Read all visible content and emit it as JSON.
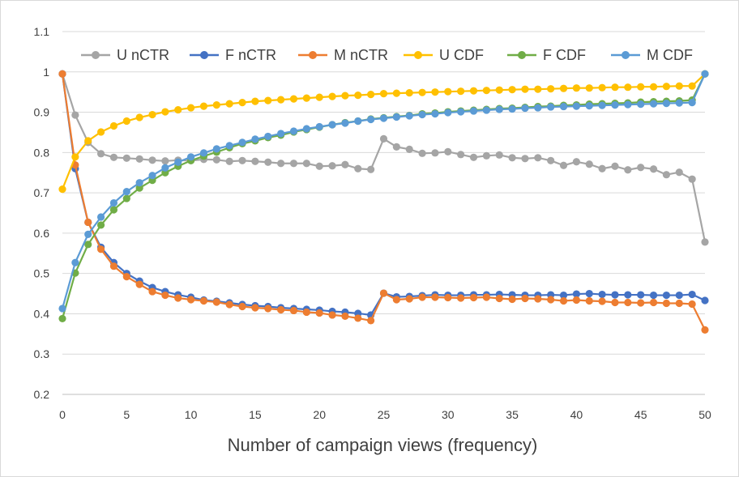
{
  "chart_data": {
    "type": "line",
    "title": "",
    "xlabel": "Number of campaign views (frequency)",
    "ylabel": "",
    "xlim": [
      0,
      50
    ],
    "ylim": [
      0.2,
      1.1
    ],
    "x_ticks": [
      0,
      5,
      10,
      15,
      20,
      25,
      30,
      35,
      40,
      45,
      50
    ],
    "y_ticks": [
      0.2,
      0.3,
      0.4,
      0.5,
      0.6,
      0.7,
      0.8,
      0.9,
      1,
      1.1
    ],
    "y_tick_labels": [
      "0.2",
      "0.3",
      "0.4",
      "0.5",
      "0.6",
      "0.7",
      "0.8",
      "0.9",
      "1",
      "1.1"
    ],
    "x_tick_labels": [
      "0",
      "5",
      "10",
      "15",
      "20",
      "25",
      "30",
      "35",
      "40",
      "45",
      "50"
    ],
    "grid": "horizontal",
    "legend_position": "top",
    "x": [
      0,
      1,
      2,
      3,
      4,
      5,
      6,
      7,
      8,
      9,
      10,
      11,
      12,
      13,
      14,
      15,
      16,
      17,
      18,
      19,
      20,
      21,
      22,
      23,
      24,
      25,
      26,
      27,
      28,
      29,
      30,
      31,
      32,
      33,
      34,
      35,
      36,
      37,
      38,
      39,
      40,
      41,
      42,
      43,
      44,
      45,
      46,
      47,
      48,
      49,
      50
    ],
    "series": [
      {
        "name": "U nCTR",
        "color": "#a5a5a5",
        "values": [
          0.995,
          0.893,
          0.825,
          0.797,
          0.788,
          0.786,
          0.784,
          0.781,
          0.779,
          0.781,
          0.78,
          0.783,
          0.782,
          0.778,
          0.78,
          0.778,
          0.776,
          0.773,
          0.773,
          0.773,
          0.766,
          0.767,
          0.77,
          0.76,
          0.758,
          0.834,
          0.814,
          0.808,
          0.798,
          0.799,
          0.802,
          0.795,
          0.788,
          0.792,
          0.794,
          0.787,
          0.785,
          0.787,
          0.78,
          0.768,
          0.777,
          0.771,
          0.76,
          0.766,
          0.757,
          0.763,
          0.759,
          0.745,
          0.751,
          0.734,
          0.578
        ]
      },
      {
        "name": "F nCTR",
        "color": "#4472c4",
        "values": [
          0.995,
          0.76,
          0.627,
          0.565,
          0.527,
          0.5,
          0.481,
          0.465,
          0.455,
          0.447,
          0.441,
          0.434,
          0.431,
          0.427,
          0.423,
          0.42,
          0.418,
          0.415,
          0.413,
          0.411,
          0.409,
          0.406,
          0.404,
          0.401,
          0.397,
          0.451,
          0.442,
          0.443,
          0.445,
          0.447,
          0.446,
          0.446,
          0.447,
          0.447,
          0.448,
          0.447,
          0.446,
          0.446,
          0.447,
          0.446,
          0.449,
          0.45,
          0.448,
          0.447,
          0.447,
          0.447,
          0.446,
          0.446,
          0.446,
          0.448,
          0.433
        ]
      },
      {
        "name": "M nCTR",
        "color": "#ed7d31",
        "values": [
          0.995,
          0.769,
          0.627,
          0.56,
          0.518,
          0.492,
          0.473,
          0.455,
          0.446,
          0.439,
          0.435,
          0.432,
          0.429,
          0.423,
          0.418,
          0.415,
          0.413,
          0.41,
          0.408,
          0.404,
          0.402,
          0.397,
          0.394,
          0.389,
          0.383,
          0.451,
          0.435,
          0.437,
          0.441,
          0.441,
          0.44,
          0.439,
          0.44,
          0.441,
          0.438,
          0.436,
          0.438,
          0.437,
          0.435,
          0.432,
          0.434,
          0.432,
          0.431,
          0.428,
          0.428,
          0.427,
          0.428,
          0.426,
          0.426,
          0.424,
          0.36
        ]
      },
      {
        "name": "U CDF",
        "color": "#ffc000",
        "values": [
          0.709,
          0.789,
          0.829,
          0.851,
          0.866,
          0.878,
          0.887,
          0.894,
          0.901,
          0.906,
          0.911,
          0.915,
          0.918,
          0.921,
          0.924,
          0.927,
          0.929,
          0.931,
          0.933,
          0.935,
          0.937,
          0.939,
          0.941,
          0.942,
          0.944,
          0.946,
          0.947,
          0.948,
          0.949,
          0.95,
          0.951,
          0.952,
          0.953,
          0.954,
          0.955,
          0.956,
          0.957,
          0.957,
          0.958,
          0.959,
          0.96,
          0.96,
          0.961,
          0.962,
          0.962,
          0.963,
          0.963,
          0.964,
          0.965,
          0.965,
          0.995
        ]
      },
      {
        "name": "F CDF",
        "color": "#70ad47",
        "values": [
          0.388,
          0.501,
          0.572,
          0.62,
          0.658,
          0.686,
          0.712,
          0.731,
          0.75,
          0.766,
          0.78,
          0.791,
          0.801,
          0.812,
          0.822,
          0.829,
          0.837,
          0.843,
          0.851,
          0.857,
          0.863,
          0.869,
          0.874,
          0.878,
          0.883,
          0.886,
          0.889,
          0.892,
          0.896,
          0.898,
          0.901,
          0.903,
          0.905,
          0.907,
          0.909,
          0.91,
          0.912,
          0.914,
          0.915,
          0.917,
          0.918,
          0.92,
          0.921,
          0.922,
          0.923,
          0.925,
          0.926,
          0.927,
          0.928,
          0.93,
          0.995
        ]
      },
      {
        "name": "M CDF",
        "color": "#5b9bd5",
        "values": [
          0.413,
          0.527,
          0.597,
          0.64,
          0.675,
          0.703,
          0.725,
          0.743,
          0.762,
          0.776,
          0.789,
          0.799,
          0.809,
          0.817,
          0.825,
          0.833,
          0.84,
          0.847,
          0.853,
          0.859,
          0.864,
          0.869,
          0.873,
          0.878,
          0.882,
          0.885,
          0.888,
          0.891,
          0.894,
          0.896,
          0.899,
          0.901,
          0.903,
          0.905,
          0.907,
          0.908,
          0.91,
          0.911,
          0.913,
          0.914,
          0.915,
          0.916,
          0.917,
          0.918,
          0.919,
          0.92,
          0.921,
          0.922,
          0.923,
          0.924,
          0.995
        ]
      }
    ]
  }
}
